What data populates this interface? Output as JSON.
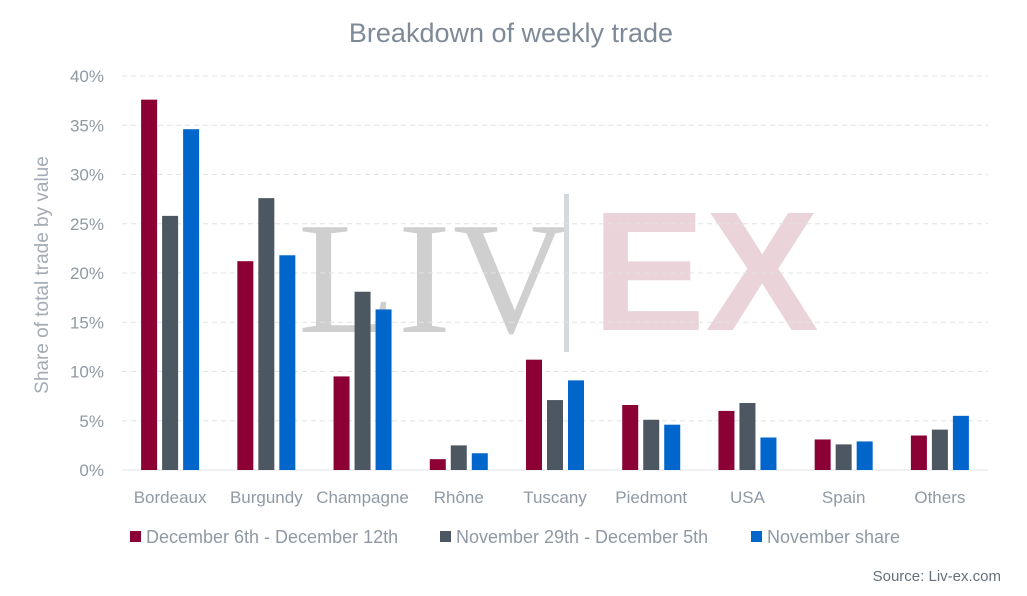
{
  "chart_data": {
    "type": "bar",
    "title": "Breakdown of weekly trade",
    "ylabel": "Share of total trade by value",
    "xlabel": "",
    "ylim": [
      0,
      40
    ],
    "yticks": [
      "0%",
      "5%",
      "10%",
      "15%",
      "20%",
      "25%",
      "30%",
      "35%",
      "40%"
    ],
    "grid": true,
    "legend_position": "bottom",
    "categories": [
      "Bordeaux",
      "Burgundy",
      "Champagne",
      "Rhône",
      "Tuscany",
      "Piedmont",
      "USA",
      "Spain",
      "Others"
    ],
    "series": [
      {
        "name": "December 6th - December 12th",
        "color": "#8b0035",
        "values": [
          37.6,
          21.2,
          9.5,
          1.1,
          11.2,
          6.6,
          6.0,
          3.1,
          3.5
        ]
      },
      {
        "name": "November 29th - December 5th",
        "color": "#4d5761",
        "values": [
          25.8,
          27.6,
          18.1,
          2.5,
          7.1,
          5.1,
          6.8,
          2.6,
          4.1
        ]
      },
      {
        "name": "November share",
        "color": "#0066cc",
        "values": [
          34.6,
          21.8,
          16.3,
          1.7,
          9.1,
          4.6,
          3.3,
          2.9,
          5.5
        ]
      }
    ]
  },
  "watermark": {
    "left": "LIV",
    "right": "EX",
    "left_color": "#cfcfcf",
    "right_color": "#ead3d9"
  },
  "source": "Source: Liv-ex.com"
}
